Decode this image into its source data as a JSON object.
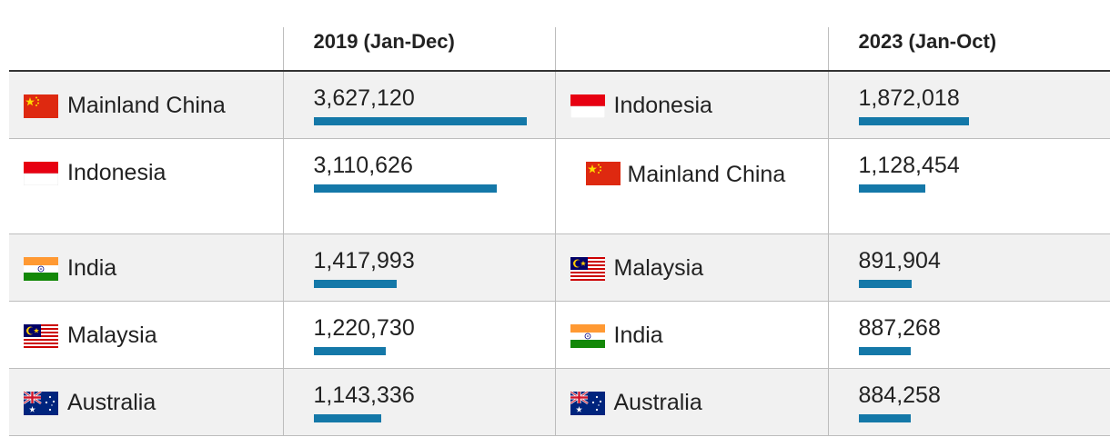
{
  "chart_data": {
    "type": "table",
    "columns": [
      "",
      "2019 (Jan-Dec)",
      "",
      "2023 (Jan-Oct)"
    ],
    "bar_color": "#1478a8",
    "series": [
      {
        "name": "2019 (Jan-Dec)",
        "rows": [
          {
            "country": "Mainland China",
            "flag": "china-flag-icon",
            "value": 3627120,
            "label": "3,627,120"
          },
          {
            "country": "Indonesia",
            "flag": "indonesia-flag-icon",
            "value": 3110626,
            "label": "3,110,626"
          },
          {
            "country": "India",
            "flag": "india-flag-icon",
            "value": 1417993,
            "label": "1,417,993"
          },
          {
            "country": "Malaysia",
            "flag": "malaysia-flag-icon",
            "value": 1220730,
            "label": "1,220,730"
          },
          {
            "country": "Australia",
            "flag": "australia-flag-icon",
            "value": 1143336,
            "label": "1,143,336"
          }
        ]
      },
      {
        "name": "2023 (Jan-Oct)",
        "rows": [
          {
            "country": "Indonesia",
            "flag": "indonesia-flag-icon",
            "value": 1872018,
            "label": "1,872,018"
          },
          {
            "country": "Mainland China",
            "flag": "china-flag-icon",
            "value": 1128454,
            "label": "1,128,454"
          },
          {
            "country": "Malaysia",
            "flag": "malaysia-flag-icon",
            "value": 891904,
            "label": "891,904"
          },
          {
            "country": "India",
            "flag": "india-flag-icon",
            "value": 887268,
            "label": "887,268"
          },
          {
            "country": "Australia",
            "flag": "australia-flag-icon",
            "value": 884258,
            "label": "884,258"
          }
        ]
      }
    ]
  }
}
